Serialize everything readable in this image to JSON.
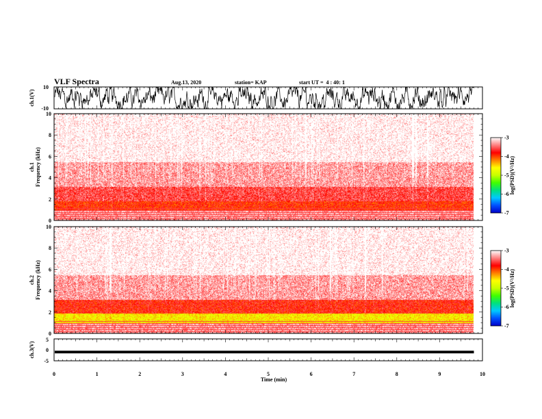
{
  "header": {
    "title": "VLF Spectra",
    "date": "Aug.13, 2020",
    "station": "station= KAP",
    "start": "start UT =  4 : 40: 1"
  },
  "chart_data": [
    {
      "type": "line",
      "id": "ch1-waveform",
      "ylabel": "ch.1(V)",
      "ylim": [
        -10,
        10
      ],
      "yticks": [
        "10",
        "-10"
      ],
      "xlim": [
        0,
        10
      ],
      "trace_style": "dense noisy black waveform spanning roughly -10 to 10 V"
    },
    {
      "type": "heatmap",
      "id": "ch1-spectrogram",
      "ylabel_top": "ch.1",
      "ylabel": "Frequency (kHz)",
      "ylim": [
        0,
        10
      ],
      "yticks": [
        "0",
        "2",
        "4",
        "6",
        "8",
        "10"
      ],
      "xlim": [
        0,
        10
      ],
      "data_extent_min": 9.8,
      "colorbar": {
        "min": -7,
        "max": -3,
        "ticks": [
          "-3",
          "-4",
          "-5",
          "-6",
          "-7"
        ],
        "label": "log(PSD)(V²/Hz)"
      },
      "bands_kHz": [
        {
          "from": 0,
          "to": 1.0,
          "level": -3.3
        },
        {
          "from": 1.0,
          "to": 1.8,
          "level": -3.9
        },
        {
          "from": 1.8,
          "to": 3.2,
          "level": -3.6
        },
        {
          "from": 3.2,
          "to": 5.5,
          "level": -3.3
        },
        {
          "from": 5.5,
          "to": 10,
          "level": -3.05
        }
      ]
    },
    {
      "type": "heatmap",
      "id": "ch2-spectrogram",
      "ylabel_top": "ch.2",
      "ylabel": "Frequency (kHz)",
      "ylim": [
        0,
        10
      ],
      "yticks": [
        "0",
        "2",
        "4",
        "6",
        "8",
        "10"
      ],
      "xlim": [
        0,
        10
      ],
      "data_extent_min": 9.8,
      "colorbar": {
        "min": -7,
        "max": -3,
        "ticks": [
          "-3",
          "-4",
          "-5",
          "-6",
          "-7"
        ],
        "label": "log(PSD)(V²/Hz)"
      },
      "bands_kHz": [
        {
          "from": 0,
          "to": 0.9,
          "level": -3.3
        },
        {
          "from": 0.9,
          "to": 1.9,
          "level": -4.6
        },
        {
          "from": 1.9,
          "to": 3.2,
          "level": -3.8
        },
        {
          "from": 3.2,
          "to": 5.5,
          "level": -3.3
        },
        {
          "from": 5.5,
          "to": 10,
          "level": -3.05
        }
      ]
    },
    {
      "type": "line",
      "id": "ch3-waveform",
      "ylabel": "ch.3(V)",
      "ylim": [
        -5,
        5
      ],
      "yticks": [
        "5",
        "0",
        "-5"
      ],
      "xlim": [
        0,
        10
      ],
      "xticks": [
        "0",
        "1",
        "2",
        "3",
        "4",
        "5",
        "6",
        "7",
        "8",
        "9",
        "10"
      ],
      "xlabel": "Time (min)",
      "trace_style": "thick black band near -1 V"
    }
  ],
  "colors": {
    "colormap": [
      "#0000c8",
      "#0050ff",
      "#00c8ff",
      "#00e080",
      "#40ff00",
      "#c8ff00",
      "#ffff00",
      "#ff8000",
      "#ff0000",
      "#ff8080",
      "#ffffff"
    ],
    "frame": "#000000",
    "trace": "#000000"
  }
}
